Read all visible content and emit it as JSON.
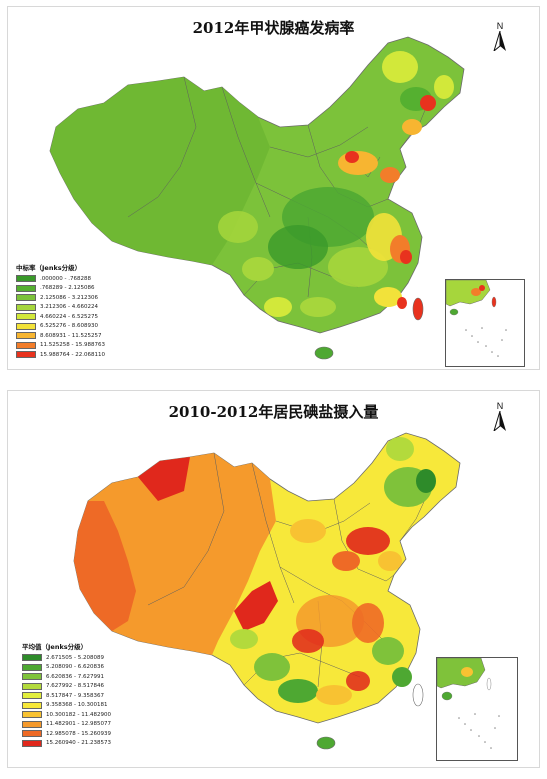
{
  "top_map": {
    "title": "2012年甲状腺癌发病率",
    "north_label": "N",
    "legend": {
      "title": "中标率（Jenks分级）",
      "items": [
        {
          "label": ".000000 - .768288",
          "color": "#3a9a2a"
        },
        {
          "label": ".768289 - 2.125086",
          "color": "#55b030"
        },
        {
          "label": "2.125086 - 3.212306",
          "color": "#7cc23a"
        },
        {
          "label": "3.212306 - 4.660224",
          "color": "#a6d63c"
        },
        {
          "label": "4.660224 - 6.525275",
          "color": "#d2e83a"
        },
        {
          "label": "6.525276 - 8.608930",
          "color": "#f2e23a"
        },
        {
          "label": "8.608931 - 11.525257",
          "color": "#f7b531"
        },
        {
          "label": "11.525258 - 15.988763",
          "color": "#f27d2a"
        },
        {
          "label": "15.988764 - 22.068110",
          "color": "#e8321e"
        }
      ]
    }
  },
  "bottom_map": {
    "title": "2010-2012年居民碘盐摄入量",
    "north_label": "N",
    "legend": {
      "title": "平均值（Jenks分级）",
      "items": [
        {
          "label": "2.671505 - 5.208089",
          "color": "#2e8b2a"
        },
        {
          "label": "5.208090 - 6.620836",
          "color": "#4ea832"
        },
        {
          "label": "6.620836 - 7.627991",
          "color": "#7fc23a"
        },
        {
          "label": "7.627992 - 8.517846",
          "color": "#b3da3c"
        },
        {
          "label": "8.517847 - 9.358367",
          "color": "#e2ee3c"
        },
        {
          "label": "9.358368 - 10.300181",
          "color": "#f7e83a"
        },
        {
          "label": "10.300182 - 11.482900",
          "color": "#f8c232"
        },
        {
          "label": "11.482901 - 12.985077",
          "color": "#f59a2c"
        },
        {
          "label": "12.985078 - 15.260939",
          "color": "#ee6a26"
        },
        {
          "label": "15.260940 - 21.238573",
          "color": "#e0281c"
        }
      ]
    }
  }
}
